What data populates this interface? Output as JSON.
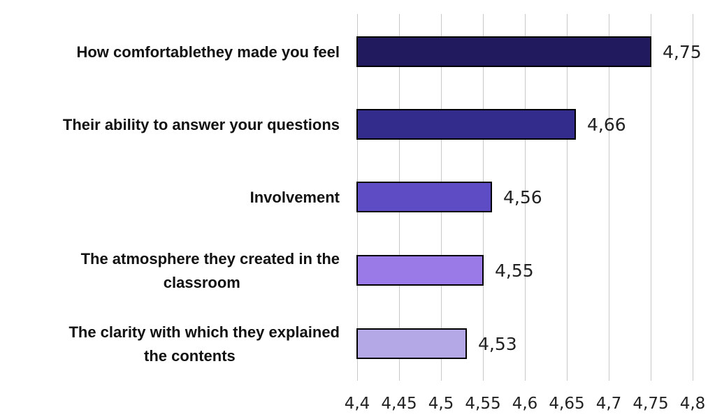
{
  "chart_data": {
    "type": "bar",
    "orientation": "horizontal",
    "categories": [
      [
        "How comfortablethey made you feel"
      ],
      [
        "Their ability to answer your questions"
      ],
      [
        "Involvement"
      ],
      [
        "The atmosphere they created in the",
        "classroom"
      ],
      [
        "The clarity with which they explained",
        "the contents"
      ]
    ],
    "values": [
      4.75,
      4.66,
      4.56,
      4.55,
      4.53
    ],
    "value_labels": [
      "4,75",
      "4,66",
      "4,56",
      "4,55",
      "4,53"
    ],
    "bar_colors": [
      "#221a5e",
      "#342c8c",
      "#5e4cc4",
      "#9a7ae6",
      "#b4a8e6"
    ],
    "xlim": [
      4.4,
      4.8
    ],
    "x_ticks": [
      4.4,
      4.45,
      4.5,
      4.55,
      4.6,
      4.65,
      4.7,
      4.75,
      4.8
    ],
    "x_tick_labels": [
      "4,4",
      "4,45",
      "4,5",
      "4,55",
      "4,6",
      "4,65",
      "4,7",
      "4,75",
      "4,8"
    ],
    "grid": true,
    "legend": false,
    "title": "",
    "xlabel": "",
    "ylabel": ""
  }
}
